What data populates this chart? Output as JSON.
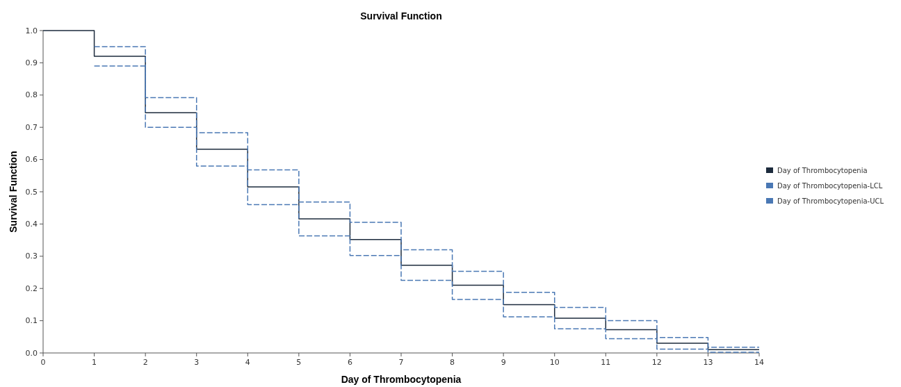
{
  "chart_data": {
    "type": "step",
    "title": "Survival Function",
    "xlabel": "Day of Thrombocytopenia",
    "ylabel": "Survival Function",
    "xlim": [
      0,
      14
    ],
    "xticks": [
      0,
      1,
      2,
      3,
      4,
      5,
      6,
      7,
      8,
      9,
      10,
      11,
      12,
      13,
      14
    ],
    "ylim": [
      0,
      1
    ],
    "yticks": [
      {
        "value": 0,
        "label": "0.0"
      },
      0.1,
      0.2,
      0.3,
      0.4,
      0.5,
      0.6,
      0.7,
      0.8,
      0.9,
      {
        "value": 1,
        "label": "1.0"
      }
    ],
    "grid": false,
    "legend": "right",
    "series": [
      {
        "name": "Day of Thrombocytopenia",
        "color": "#1c2b3c",
        "line_style": "solid",
        "x": [
          0,
          1,
          2,
          3,
          4,
          5,
          6,
          7,
          8,
          9,
          10,
          11,
          12,
          13,
          14
        ],
        "values": [
          1,
          0.92,
          0.745,
          0.632,
          0.515,
          0.416,
          0.352,
          0.272,
          0.21,
          0.15,
          0.108,
          0.072,
          0.03,
          0.01,
          0.01
        ]
      },
      {
        "name": "Day of Thrombocytopenia-LCL",
        "color": "#4a78b4",
        "line_style": "dashed",
        "x": [
          1,
          2,
          3,
          4,
          5,
          6,
          7,
          8,
          9,
          10,
          11,
          12,
          13,
          14
        ],
        "values": [
          0.89,
          0.7,
          0.58,
          0.46,
          0.363,
          0.302,
          0.225,
          0.166,
          0.112,
          0.075,
          0.044,
          0.012,
          0.002,
          0.002
        ]
      },
      {
        "name": "Day of Thrombocytopenia-UCL",
        "color": "#4a78b4",
        "line_style": "dashed",
        "x": [
          1,
          2,
          3,
          4,
          5,
          6,
          7,
          8,
          9,
          10,
          11,
          12,
          13,
          14
        ],
        "values": [
          0.95,
          0.792,
          0.683,
          0.568,
          0.468,
          0.405,
          0.32,
          0.253,
          0.188,
          0.141,
          0.1,
          0.048,
          0.018,
          0.018
        ]
      }
    ]
  }
}
